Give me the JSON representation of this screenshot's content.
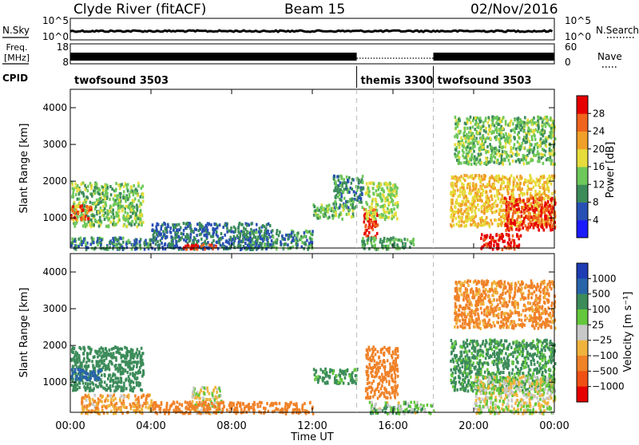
{
  "header": {
    "site": "Clyde River (fitACF)",
    "beam": "Beam 15",
    "date": "02/Nov/2016"
  },
  "top_panels": {
    "nsky_label": "N.Sky",
    "nsky_ticks": [
      "10^5",
      "10^0"
    ],
    "nsearch_label": "N.Search",
    "nsearch_ticks": [
      "10^5",
      "10^0"
    ],
    "freq_label_1": "Freq.",
    "freq_label_2": "[MHz]",
    "freq_ticks": [
      "18",
      "8"
    ],
    "nave_label": "Nave",
    "nave_ticks": [
      "60",
      "0"
    ],
    "cpid_label": "CPID",
    "cpid_segments": [
      {
        "name": "twofsound 3503",
        "start_hour": 0,
        "end_hour": 14.2
      },
      {
        "name": "themis 3300",
        "start_hour": 14.2,
        "end_hour": 18.0
      },
      {
        "name": "twofsound 3503",
        "start_hour": 18.0,
        "end_hour": 24
      }
    ]
  },
  "axes": {
    "x_title": "Time UT",
    "x_ticks": [
      "00:00",
      "04:00",
      "08:00",
      "12:00",
      "16:00",
      "20:00",
      "00:00"
    ],
    "y_title": "Slant Range [km]",
    "y_ticks": [
      "1000",
      "2000",
      "3000",
      "4000"
    ]
  },
  "colorbars": {
    "power": {
      "title": "Power [dB]",
      "ticks": [
        "4",
        "8",
        "12",
        "16",
        "20",
        "24",
        "28"
      ],
      "colors": [
        "#1a1aff",
        "#2850b4",
        "#3c8c5a",
        "#6ec85a",
        "#e6dc3c",
        "#f0a028",
        "#f0641e",
        "#e60000"
      ]
    },
    "velocity": {
      "title": "Velocity [m s⁻¹]",
      "ticks": [
        "1000",
        "500",
        "100",
        "25",
        "−25",
        "−100",
        "−500",
        "−1000"
      ],
      "colors": [
        "#1e3cb4",
        "#2864aa",
        "#3c8c5a",
        "#64c83c",
        "#c8c8c8",
        "#f0b43c",
        "#f08228",
        "#f05014",
        "#e60000"
      ]
    }
  },
  "chart_data": [
    {
      "type": "heatmap",
      "panel": "power",
      "xlabel": "Time UT",
      "ylabel": "Slant Range [km]",
      "xlim_hours": [
        0,
        24
      ],
      "ylim_km": [
        180,
        4500
      ],
      "zlabel": "Power [dB]",
      "zlim": [
        0,
        32
      ],
      "grid": false,
      "mode_change_marks_hours": [
        14.2,
        18.0
      ],
      "scatter_regions": [
        {
          "t_start": 0.0,
          "t_end": 3.6,
          "r_min": 800,
          "r_max": 2000,
          "power": 14
        },
        {
          "t_start": 0.0,
          "t_end": 1.0,
          "r_min": 1000,
          "r_max": 1400,
          "power": 26
        },
        {
          "t_start": 0.0,
          "t_end": 4.0,
          "r_min": 180,
          "r_max": 500,
          "power": 10
        },
        {
          "t_start": 4.0,
          "t_end": 10.0,
          "r_min": 180,
          "r_max": 900,
          "power": 8
        },
        {
          "t_start": 5.5,
          "t_end": 7.2,
          "r_min": 180,
          "r_max": 320,
          "power": 28
        },
        {
          "t_start": 8.5,
          "t_end": 12.0,
          "r_min": 180,
          "r_max": 700,
          "power": 10
        },
        {
          "t_start": 12.0,
          "t_end": 14.0,
          "r_min": 1000,
          "r_max": 1400,
          "power": 14
        },
        {
          "t_start": 13.0,
          "t_end": 14.5,
          "r_min": 1300,
          "r_max": 2200,
          "power": 10
        },
        {
          "t_start": 14.5,
          "t_end": 15.2,
          "r_min": 500,
          "r_max": 1300,
          "power": 28
        },
        {
          "t_start": 14.6,
          "t_end": 16.2,
          "r_min": 1000,
          "r_max": 2000,
          "power": 16
        },
        {
          "t_start": 14.4,
          "t_end": 17.0,
          "r_min": 180,
          "r_max": 500,
          "power": 12
        },
        {
          "t_start": 18.8,
          "t_end": 24.0,
          "r_min": 800,
          "r_max": 2200,
          "power": 20
        },
        {
          "t_start": 21.5,
          "t_end": 24.0,
          "r_min": 700,
          "r_max": 1600,
          "power": 28
        },
        {
          "t_start": 20.3,
          "t_end": 22.3,
          "r_min": 180,
          "r_max": 600,
          "power": 30
        },
        {
          "t_start": 19.0,
          "t_end": 24.0,
          "r_min": 2500,
          "r_max": 3800,
          "power": 14
        }
      ]
    },
    {
      "type": "heatmap",
      "panel": "velocity",
      "xlabel": "Time UT",
      "ylabel": "Slant Range [km]",
      "xlim_hours": [
        0,
        24
      ],
      "ylim_km": [
        180,
        4500
      ],
      "zlabel": "Velocity [m s-1]",
      "zlim": [
        -1000,
        1000
      ],
      "grid": false,
      "mode_change_marks_hours": [
        14.2,
        18.0
      ],
      "scatter_regions": [
        {
          "t_start": 0.0,
          "t_end": 3.6,
          "r_min": 800,
          "r_max": 2000,
          "velocity": 200
        },
        {
          "t_start": 0.0,
          "t_end": 1.5,
          "r_min": 1100,
          "r_max": 1400,
          "velocity": 600
        },
        {
          "t_start": 0.5,
          "t_end": 4.0,
          "r_min": 180,
          "r_max": 700,
          "velocity": -100
        },
        {
          "t_start": 6.0,
          "t_end": 7.5,
          "r_min": 180,
          "r_max": 900,
          "velocity": 0
        },
        {
          "t_start": 4.0,
          "t_end": 12.0,
          "r_min": 180,
          "r_max": 500,
          "velocity": -200
        },
        {
          "t_start": 12.0,
          "t_end": 14.2,
          "r_min": 1000,
          "r_max": 1400,
          "velocity": 150
        },
        {
          "t_start": 14.6,
          "t_end": 16.2,
          "r_min": 600,
          "r_max": 2000,
          "velocity": -250
        },
        {
          "t_start": 14.8,
          "t_end": 18.0,
          "r_min": 180,
          "r_max": 500,
          "velocity": 60
        },
        {
          "t_start": 18.8,
          "t_end": 24.0,
          "r_min": 800,
          "r_max": 2200,
          "velocity": 150
        },
        {
          "t_start": 20.0,
          "t_end": 24.0,
          "r_min": 180,
          "r_max": 1200,
          "velocity": 0
        },
        {
          "t_start": 19.0,
          "t_end": 24.0,
          "r_min": 2500,
          "r_max": 3800,
          "velocity": -150
        }
      ]
    }
  ]
}
